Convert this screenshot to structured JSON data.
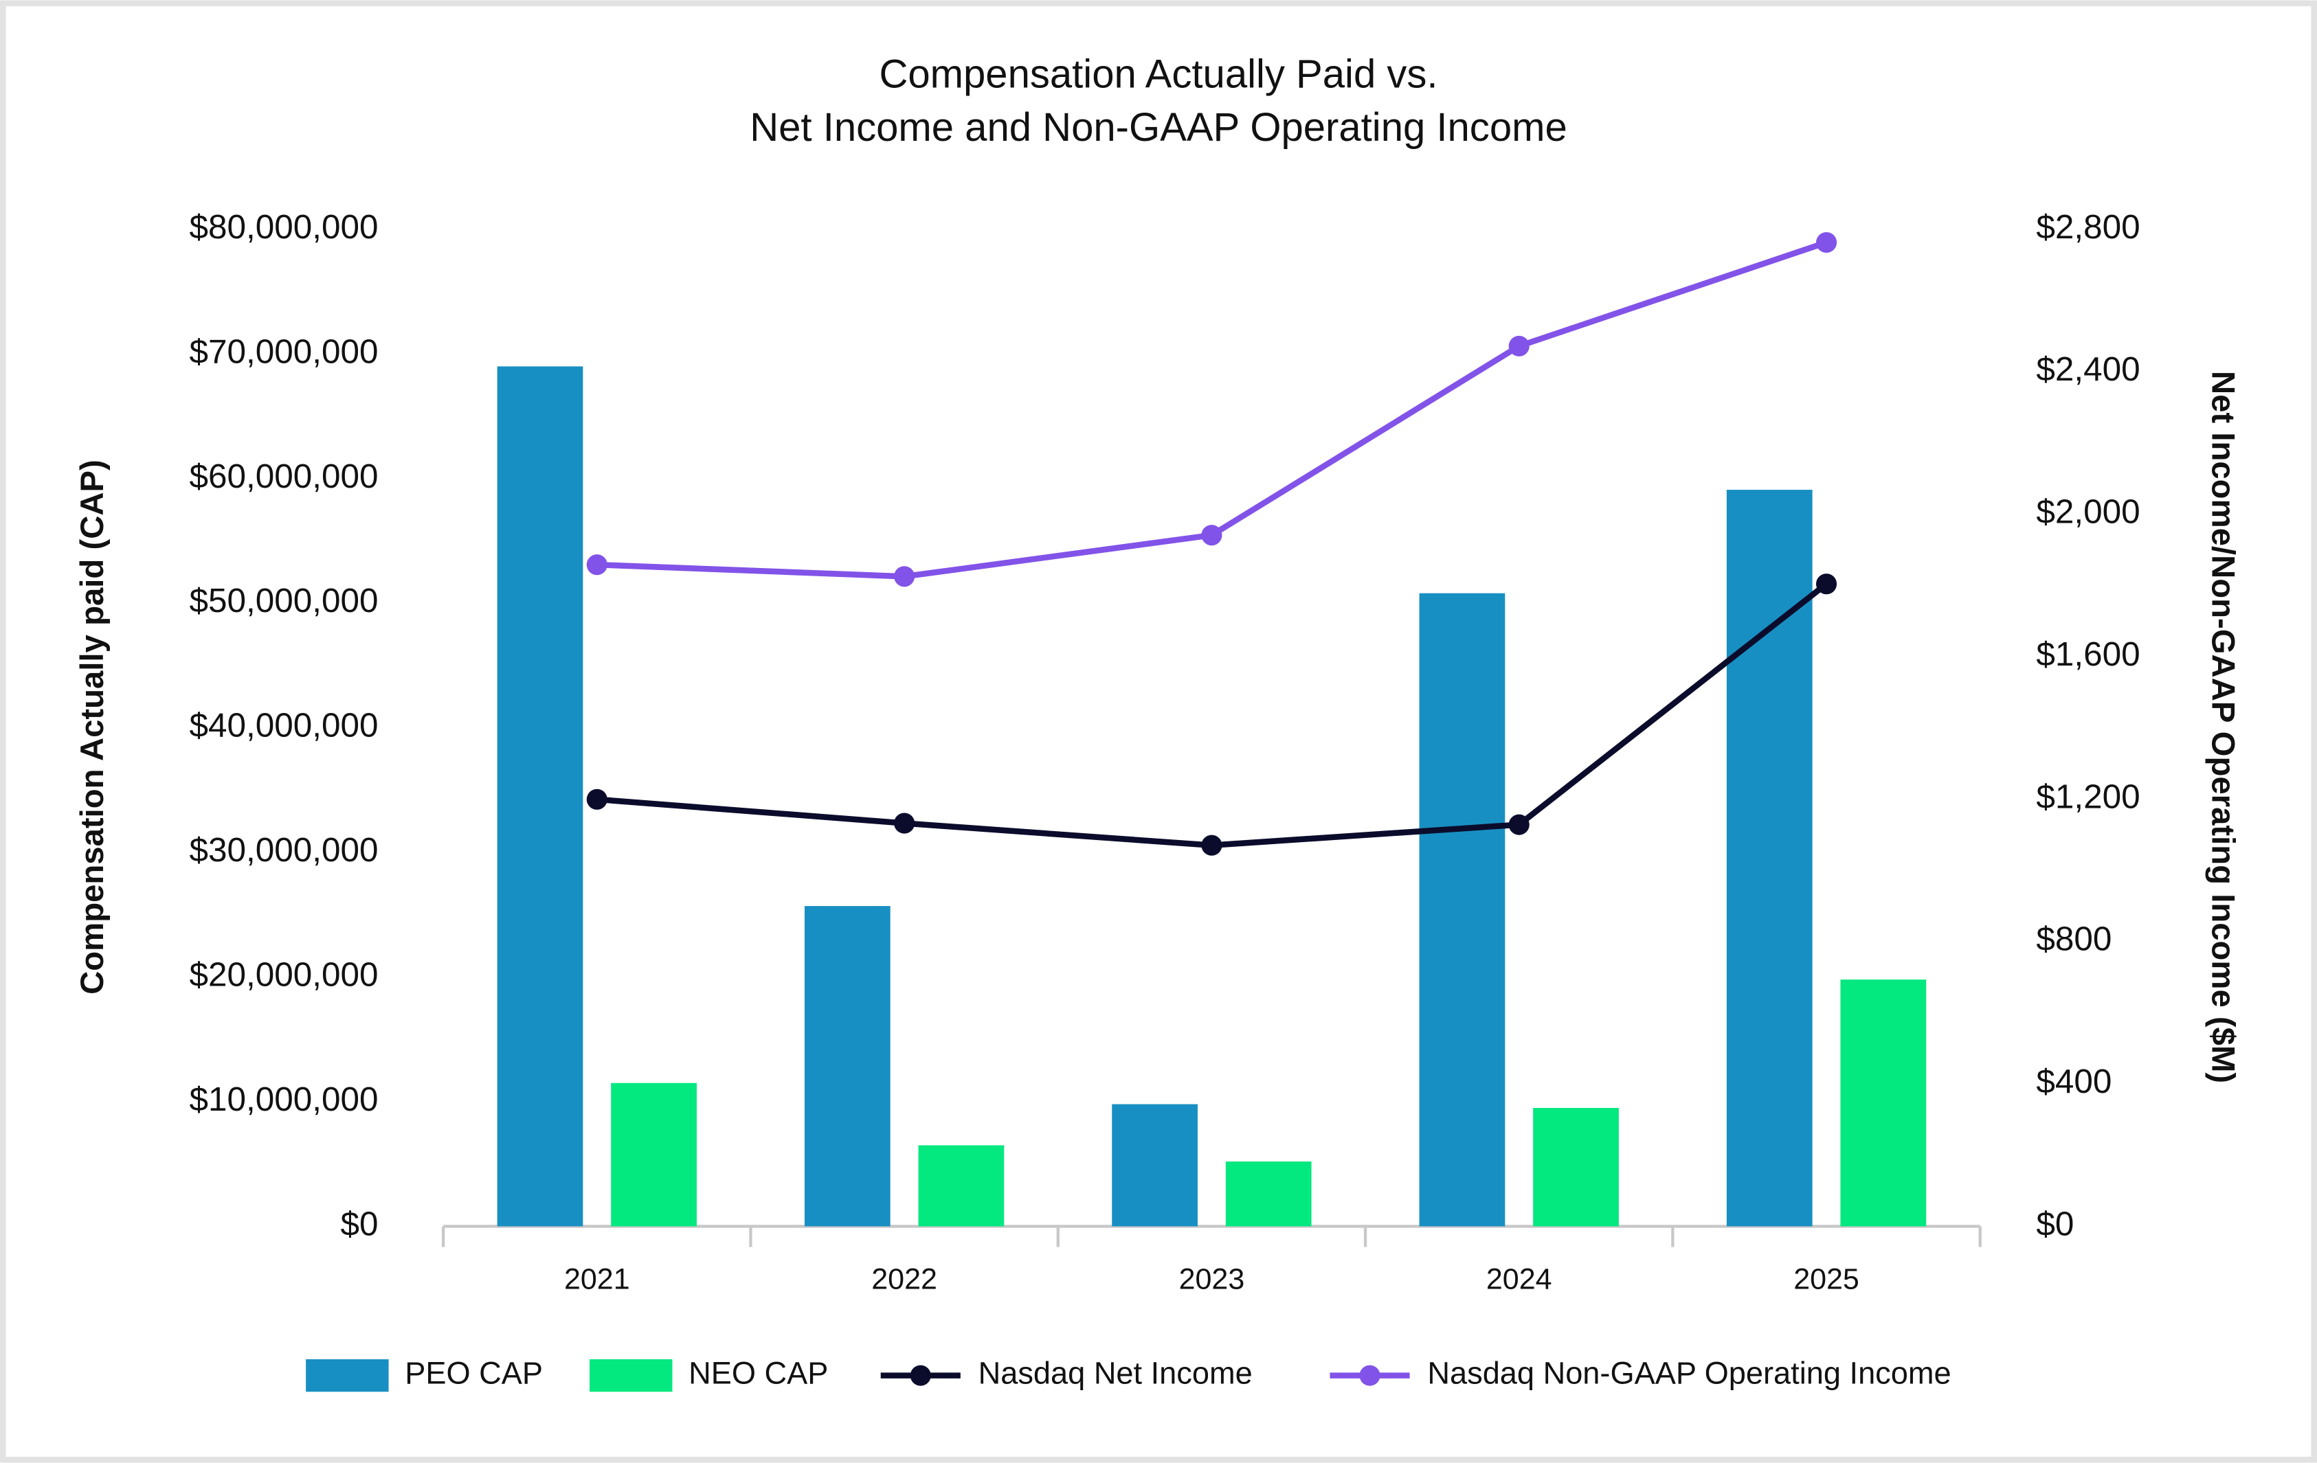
{
  "chart_data": {
    "type": "combo",
    "title": [
      "Compensation Actually Paid vs.",
      "Net Income and Non-GAAP Operating Income"
    ],
    "ylabel": "Compensation Actually paid (CAP)",
    "y2label": "Net Income/Non-GAAP Operating Income ($M)",
    "categories": [
      "2021",
      "2022",
      "2023",
      "2024",
      "2025"
    ],
    "ylim": [
      0,
      80000000
    ],
    "yticks": [
      {
        "value": 0,
        "label": "$0"
      },
      {
        "value": 10000000,
        "label": "$10,000,000"
      },
      {
        "value": 20000000,
        "label": "$20,000,000"
      },
      {
        "value": 30000000,
        "label": "$30,000,000"
      },
      {
        "value": 40000000,
        "label": "$40,000,000"
      },
      {
        "value": 50000000,
        "label": "$50,000,000"
      },
      {
        "value": 60000000,
        "label": "$60,000,000"
      },
      {
        "value": 70000000,
        "label": "$70,000,000"
      },
      {
        "value": 80000000,
        "label": "$80,000,000"
      }
    ],
    "y2lim": [
      0,
      2800
    ],
    "y2ticks": [
      {
        "value": 0,
        "label": "$0"
      },
      {
        "value": 400,
        "label": "$400"
      },
      {
        "value": 800,
        "label": "$800"
      },
      {
        "value": 1200,
        "label": "$1,200"
      },
      {
        "value": 1600,
        "label": "$1,600"
      },
      {
        "value": 2000,
        "label": "$2,000"
      },
      {
        "value": 2400,
        "label": "$2,400"
      },
      {
        "value": 2800,
        "label": "$2,800"
      }
    ],
    "grid": false,
    "legend": "bottom",
    "series": [
      {
        "name": "PEO CAP",
        "type": "bar",
        "color": "#188fc2",
        "values": [
          69000000,
          25700000,
          9800000,
          50800000,
          59100000
        ]
      },
      {
        "name": "NEO CAP",
        "type": "bar",
        "color": "#04e880",
        "values": [
          11500000,
          6500000,
          5200000,
          9500000,
          19800000
        ]
      },
      {
        "name": "Nasdaq Net Income",
        "type": "line",
        "axis": "y2",
        "color": "#0b0c2c",
        "values": [
          1199,
          1132,
          1070,
          1128,
          1804
        ]
      },
      {
        "name": "Nasdaq Non-GAAP Operating Income",
        "type": "line",
        "axis": "y2",
        "color": "#8253e8",
        "values": [
          1858,
          1825,
          1941,
          2472,
          2763
        ]
      }
    ]
  }
}
